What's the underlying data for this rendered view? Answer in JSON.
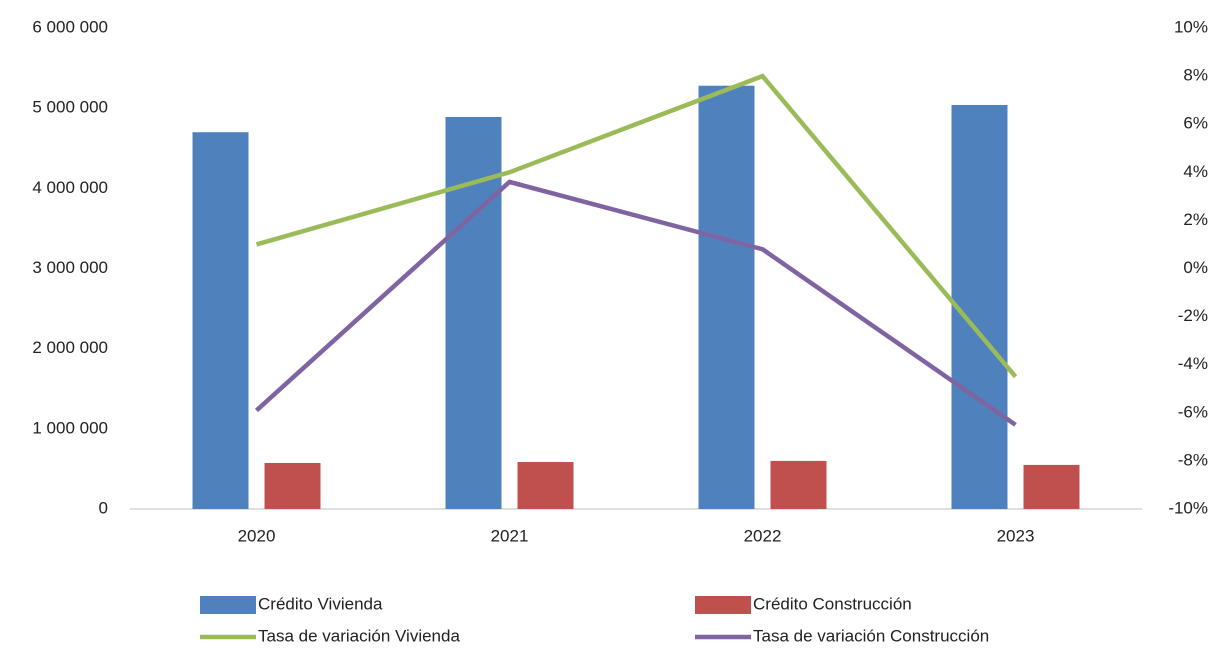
{
  "chart_data": {
    "type": "combo",
    "categories": [
      "2020",
      "2021",
      "2022",
      "2023"
    ],
    "series": [
      {
        "name": "Crédito Vivienda",
        "type": "bar",
        "color": "#4f81bd",
        "values": [
          4700000,
          4890000,
          5280000,
          5040000
        ]
      },
      {
        "name": "Crédito Construcción",
        "type": "bar",
        "color": "#c0504d",
        "values": [
          574000,
          586000,
          600000,
          550000
        ]
      },
      {
        "name": "Tasa de variación Vivienda",
        "type": "line",
        "axis": "y2",
        "color": "#9bbb59",
        "values": [
          1.0,
          4.0,
          8.0,
          -4.5
        ]
      },
      {
        "name": "Tasa de variación Construcción",
        "type": "line",
        "axis": "y2",
        "color": "#8064a2",
        "values": [
          -5.9,
          3.6,
          0.8,
          -6.5
        ]
      }
    ],
    "ylim": [
      0,
      6000000
    ],
    "yticks": [
      0,
      {
        "value": 1000000,
        "label": "1 000 000"
      },
      {
        "value": 2000000,
        "label": "2 000 000"
      },
      {
        "value": 3000000,
        "label": "3 000 000"
      },
      {
        "value": 4000000,
        "label": "4 000 000"
      },
      {
        "value": 5000000,
        "label": "5 000 000"
      },
      {
        "value": 6000000,
        "label": "6 000 000"
      }
    ],
    "y2lim": [
      -10,
      10
    ],
    "y2ticks": [
      {
        "value": -10,
        "label": "-10%"
      },
      {
        "value": -8,
        "label": "-8%"
      },
      {
        "value": -6,
        "label": "-6%"
      },
      {
        "value": -4,
        "label": "-4%"
      },
      {
        "value": -2,
        "label": "-2%"
      },
      {
        "value": 0,
        "label": "0%"
      },
      {
        "value": 2,
        "label": "2%"
      },
      {
        "value": 4,
        "label": "4%"
      },
      {
        "value": 6,
        "label": "6%"
      },
      {
        "value": 8,
        "label": "8%"
      },
      {
        "value": 10,
        "label": "10%"
      }
    ],
    "grid": false
  }
}
